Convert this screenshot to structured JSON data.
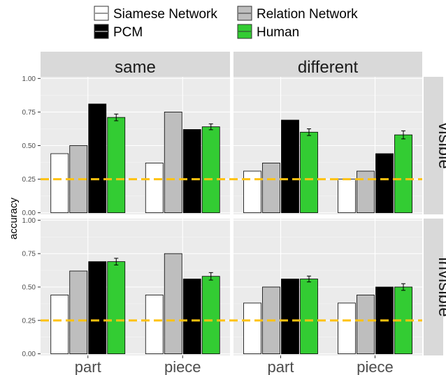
{
  "chart_data": {
    "type": "bar",
    "ylabel": "accuracy",
    "xlabel": "",
    "ylim": [
      0,
      1.0
    ],
    "yticks": [
      "0.00",
      "0.25",
      "0.50",
      "0.75",
      "1.00"
    ],
    "reference_line": {
      "y": 0.25,
      "color": "#FFC20E",
      "style": "dashed"
    },
    "column_facets": [
      "same",
      "different"
    ],
    "row_facets": [
      "visible",
      "invisible"
    ],
    "categories": [
      "part",
      "piece"
    ],
    "legend_position": "top",
    "series": [
      {
        "name": "Siamese Network",
        "color": "#FFFFFF"
      },
      {
        "name": "Relation Network",
        "color": "#BEBEBE"
      },
      {
        "name": "PCM",
        "color": "#000000"
      },
      {
        "name": "Human",
        "color": "#33CC33"
      }
    ],
    "panels": [
      {
        "col": "same",
        "row": "visible",
        "values": {
          "part": [
            0.44,
            0.5,
            0.81,
            0.71
          ],
          "piece": [
            0.37,
            0.75,
            0.62,
            0.64
          ]
        },
        "human_error": {
          "part": 0.025,
          "piece": 0.022
        }
      },
      {
        "col": "different",
        "row": "visible",
        "values": {
          "part": [
            0.31,
            0.37,
            0.69,
            0.6
          ],
          "piece": [
            0.25,
            0.31,
            0.44,
            0.58
          ]
        },
        "human_error": {
          "part": 0.025,
          "piece": 0.03
        }
      },
      {
        "col": "same",
        "row": "invisible",
        "values": {
          "part": [
            0.44,
            0.62,
            0.69,
            0.69
          ],
          "piece": [
            0.44,
            0.75,
            0.56,
            0.58
          ]
        },
        "human_error": {
          "part": 0.025,
          "piece": 0.028
        }
      },
      {
        "col": "different",
        "row": "invisible",
        "values": {
          "part": [
            0.38,
            0.5,
            0.56,
            0.56
          ],
          "piece": [
            0.38,
            0.44,
            0.5,
            0.5
          ]
        },
        "human_error": {
          "part": 0.022,
          "piece": 0.025
        }
      }
    ]
  }
}
